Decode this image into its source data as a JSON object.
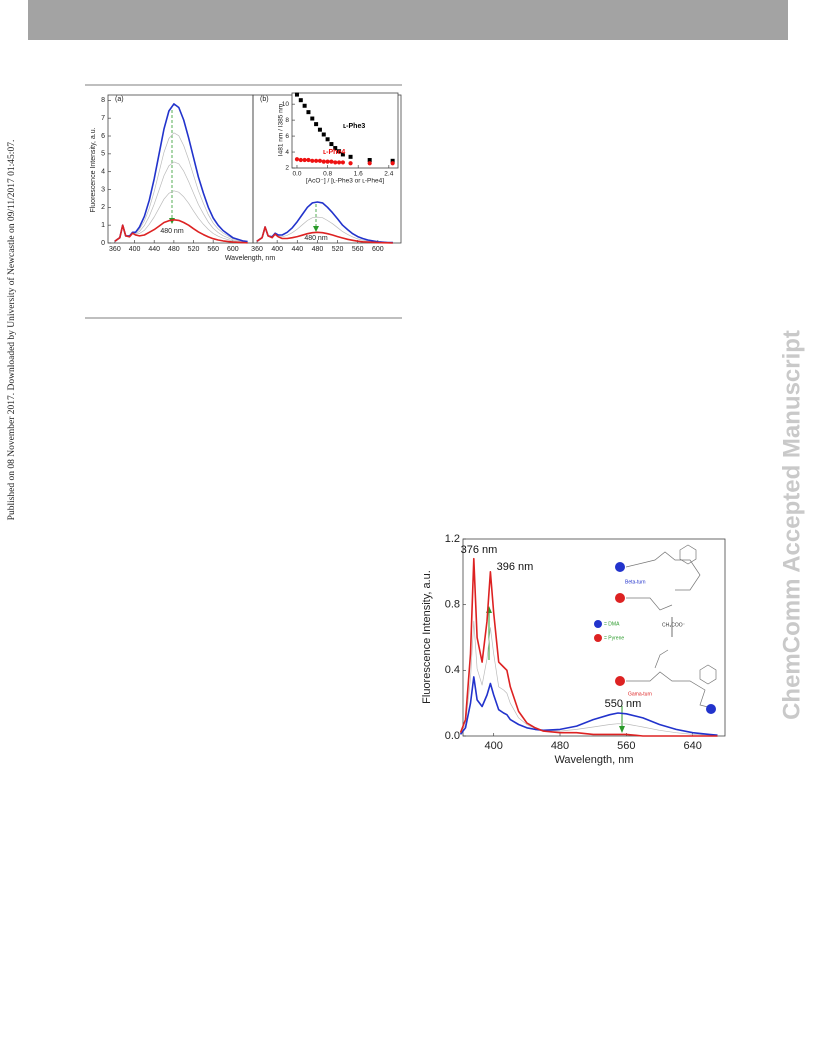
{
  "side_note": "Published on 08 November 2017. Downloaded by University of Newcastle on 09/11/2017 01:45:07.",
  "watermark": "ChemComm Accepted Manuscript",
  "chart_data": [
    {
      "type": "line",
      "panel_label": "(a)",
      "y_label": "Fluorescence Intensity, a.u.",
      "x_label": "Wavelength, nm",
      "annotations": [
        "480 nm"
      ],
      "xlim": [
        346,
        641
      ],
      "ylim": [
        0,
        8.3
      ],
      "xticks": [
        360,
        400,
        440,
        480,
        520,
        560,
        600
      ],
      "yticks": [
        0,
        1,
        2,
        3,
        4,
        5,
        6,
        7,
        8
      ],
      "x": [
        360,
        370,
        376,
        382,
        390,
        396,
        402,
        410,
        420,
        430,
        440,
        450,
        460,
        470,
        480,
        490,
        500,
        510,
        520,
        530,
        540,
        550,
        560,
        570,
        580,
        600,
        620,
        630
      ],
      "series": [
        {
          "color": "#bbbbbb",
          "values": [
            0.1,
            0.3,
            1.0,
            0.4,
            0.36,
            0.56,
            0.49,
            0.53,
            0.71,
            1.05,
            1.46,
            1.96,
            2.46,
            2.79,
            2.93,
            2.85,
            2.59,
            2.23,
            1.8,
            1.39,
            1.05,
            0.76,
            0.53,
            0.38,
            0.27,
            0.11,
            0.05,
            0.03
          ]
        },
        {
          "color": "#bbbbbb",
          "values": [
            0.1,
            0.3,
            1.0,
            0.4,
            0.38,
            0.58,
            0.53,
            0.65,
            0.98,
            1.5,
            2.18,
            2.98,
            3.78,
            4.33,
            4.55,
            4.44,
            4.03,
            3.45,
            2.8,
            2.16,
            1.64,
            1.17,
            0.82,
            0.59,
            0.41,
            0.18,
            0.07,
            0.05
          ]
        },
        {
          "color": "#bbbbbb",
          "values": [
            0.1,
            0.3,
            1.0,
            0.4,
            0.39,
            0.59,
            0.56,
            0.78,
            1.24,
            1.95,
            2.89,
            3.99,
            5.09,
            5.86,
            6.18,
            6.02,
            5.46,
            4.68,
            3.8,
            2.93,
            2.22,
            1.59,
            1.11,
            0.79,
            0.56,
            0.24,
            0.1,
            0.06
          ]
        },
        {
          "color": "#2233cc",
          "values": [
            0.1,
            0.3,
            1.0,
            0.4,
            0.4,
            0.6,
            0.6,
            0.9,
            1.5,
            2.4,
            3.6,
            5.0,
            6.4,
            7.4,
            7.8,
            7.6,
            6.9,
            5.9,
            4.8,
            3.7,
            2.8,
            2.0,
            1.4,
            1.0,
            0.7,
            0.3,
            0.12,
            0.08
          ]
        },
        {
          "color": "#dd2222",
          "values": [
            0.1,
            0.3,
            1.0,
            0.4,
            0.35,
            0.55,
            0.45,
            0.4,
            0.45,
            0.6,
            0.75,
            0.95,
            1.15,
            1.25,
            1.3,
            1.27,
            1.15,
            1.0,
            0.8,
            0.62,
            0.47,
            0.34,
            0.24,
            0.17,
            0.12,
            0.05,
            0.02,
            0.01
          ]
        }
      ]
    },
    {
      "type": "line",
      "panel_label": "(b)",
      "annotations": [
        "480 nm"
      ],
      "xlim": [
        352,
        646
      ],
      "ylim": [
        0,
        8.3
      ],
      "xticks": [
        360,
        400,
        440,
        480,
        520,
        560,
        600
      ],
      "x": [
        360,
        370,
        376,
        382,
        390,
        396,
        402,
        410,
        420,
        430,
        440,
        450,
        460,
        470,
        480,
        490,
        500,
        510,
        520,
        530,
        540,
        550,
        560,
        570,
        580,
        600,
        620,
        630
      ],
      "series": [
        {
          "color": "#bbbbbb",
          "values": [
            0.1,
            0.3,
            0.9,
            0.4,
            0.33,
            0.53,
            0.4,
            0.35,
            0.43,
            0.58,
            0.78,
            1.02,
            1.26,
            1.42,
            1.45,
            1.42,
            1.26,
            1.08,
            0.86,
            0.64,
            0.48,
            0.34,
            0.23,
            0.16,
            0.11,
            0.05,
            0.02,
            0.01
          ]
        },
        {
          "color": "#2233cc",
          "values": [
            0.1,
            0.3,
            0.9,
            0.4,
            0.35,
            0.55,
            0.45,
            0.45,
            0.6,
            0.85,
            1.2,
            1.6,
            2.0,
            2.25,
            2.3,
            2.25,
            2.0,
            1.7,
            1.35,
            1.0,
            0.75,
            0.52,
            0.36,
            0.25,
            0.17,
            0.07,
            0.03,
            0.02
          ]
        },
        {
          "color": "#dd2222",
          "values": [
            0.1,
            0.3,
            0.9,
            0.4,
            0.3,
            0.5,
            0.35,
            0.25,
            0.25,
            0.3,
            0.36,
            0.44,
            0.52,
            0.58,
            0.6,
            0.58,
            0.52,
            0.45,
            0.36,
            0.28,
            0.21,
            0.15,
            0.1,
            0.07,
            0.05,
            0.02,
            0.01,
            0.0
          ]
        }
      ]
    },
    {
      "type": "scatter",
      "y_label": "I481 nm / I385 nm",
      "x_label": "[AcO⁻] / [ʟ-Phe3 or ʟ-Phe4]",
      "xlim": [
        -0.13,
        2.64
      ],
      "ylim": [
        2,
        11.4
      ],
      "xticks": [
        {
          "value": 0,
          "label": "0.0"
        },
        {
          "value": 0.8,
          "label": "0.8"
        },
        {
          "value": 1.6,
          "label": "1.6"
        },
        {
          "value": 2.4,
          "label": "2.4"
        }
      ],
      "yticks": [
        2,
        4,
        6,
        8,
        10
      ],
      "x": [
        0,
        0.1,
        0.2,
        0.3,
        0.4,
        0.5,
        0.6,
        0.7,
        0.8,
        0.9,
        1.0,
        1.1,
        1.2,
        1.4,
        1.9,
        2.5
      ],
      "series": [
        {
          "name": "ʟ-Phe3",
          "color": "#000000",
          "marker": "square",
          "values": [
            11.2,
            10.5,
            9.8,
            9.0,
            8.2,
            7.5,
            6.8,
            6.2,
            5.6,
            5.0,
            4.5,
            4.1,
            3.7,
            3.4,
            3.0,
            2.9
          ]
        },
        {
          "name": "ʟ-Phe4",
          "color": "#ee1111",
          "marker": "circle",
          "values": [
            3.1,
            3.0,
            3.0,
            3.0,
            2.9,
            2.9,
            2.9,
            2.8,
            2.8,
            2.8,
            2.7,
            2.7,
            2.7,
            2.6,
            2.6,
            2.6
          ]
        }
      ]
    },
    {
      "type": "line",
      "y_label": "Fluorescence Intensity, a.u.",
      "x_label": "Wavelength, nm",
      "annotations": [
        "376 nm",
        "396 nm",
        "550 nm"
      ],
      "inset_labels": [
        "Beta-turn",
        "CH₃COO⁻",
        "= DMA",
        "= Pyrene",
        "Gama-turn"
      ],
      "xlim": [
        363,
        679
      ],
      "ylim": [
        0,
        1.2
      ],
      "xticks": [
        400,
        480,
        560,
        640
      ],
      "yticks": [
        {
          "value": 0,
          "label": "0.0"
        },
        {
          "value": 0.4,
          "label": "0.4"
        },
        {
          "value": 0.8,
          "label": "0.8"
        },
        {
          "value": 1.2,
          "label": "1.2"
        }
      ],
      "x": [
        360,
        366,
        372,
        376,
        380,
        386,
        392,
        396,
        400,
        406,
        412,
        416,
        420,
        430,
        440,
        450,
        460,
        480,
        500,
        520,
        540,
        550,
        560,
        580,
        600,
        620,
        640,
        660,
        670
      ],
      "series": [
        {
          "color": "#bbbbbb",
          "values": [
            0.015,
            0.07,
            0.35,
            0.7,
            0.41,
            0.31,
            0.47,
            0.66,
            0.5,
            0.3,
            0.28,
            0.26,
            0.2,
            0.11,
            0.07,
            0.045,
            0.035,
            0.03,
            0.04,
            0.055,
            0.07,
            0.075,
            0.073,
            0.055,
            0.035,
            0.02,
            0.01,
            0.005,
            0.003
          ]
        },
        {
          "color": "#2233cc",
          "values": [
            0.01,
            0.05,
            0.2,
            0.36,
            0.22,
            0.18,
            0.25,
            0.32,
            0.25,
            0.16,
            0.14,
            0.13,
            0.1,
            0.07,
            0.05,
            0.04,
            0.035,
            0.04,
            0.06,
            0.1,
            0.13,
            0.14,
            0.135,
            0.11,
            0.07,
            0.04,
            0.02,
            0.01,
            0.005
          ]
        },
        {
          "color": "#dd2222",
          "values": [
            0.02,
            0.1,
            0.5,
            1.08,
            0.6,
            0.45,
            0.7,
            1.0,
            0.75,
            0.45,
            0.42,
            0.4,
            0.3,
            0.15,
            0.08,
            0.05,
            0.03,
            0.02,
            0.02,
            0.01,
            0.01,
            0.01,
            0.01,
            0,
            0,
            0,
            0,
            0,
            0
          ]
        }
      ]
    }
  ]
}
